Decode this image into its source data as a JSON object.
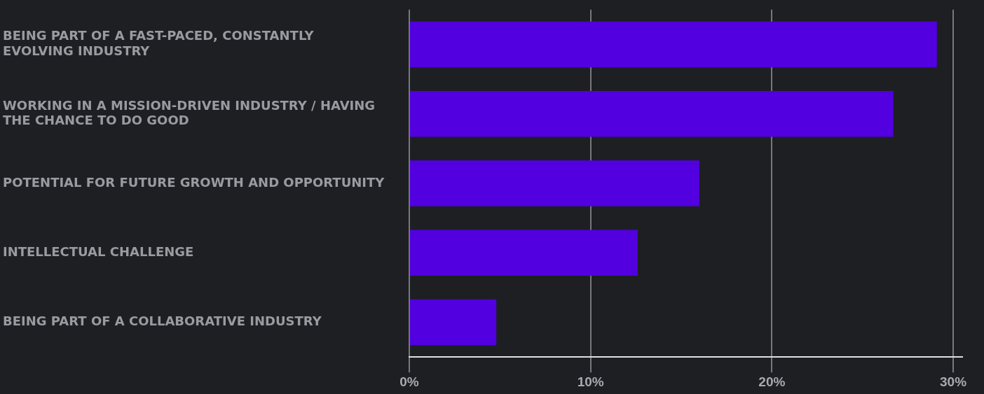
{
  "chart_data": {
    "type": "bar",
    "orientation": "horizontal",
    "categories": [
      "BEING PART OF A FAST-PACED, CONSTANTLY EVOLVING INDUSTRY",
      "WORKING IN A MISSION-DRIVEN INDUSTRY / HAVING THE CHANCE TO DO GOOD",
      "POTENTIAL FOR FUTURE GROWTH AND OPPORTUNITY",
      "INTELLECTUAL CHALLENGE",
      "BEING PART OF A COLLABORATIVE INDUSTRY"
    ],
    "values": [
      29.1,
      26.7,
      16.0,
      12.6,
      4.8
    ],
    "color": "#5200e0",
    "xlim": [
      0,
      30.5
    ],
    "xticks": [
      {
        "value": 0,
        "label": "0%"
      },
      {
        "value": 10,
        "label": "10%"
      },
      {
        "value": 20,
        "label": "20%"
      },
      {
        "value": 30,
        "label": "30%"
      }
    ],
    "grid": "x",
    "legend": false
  }
}
